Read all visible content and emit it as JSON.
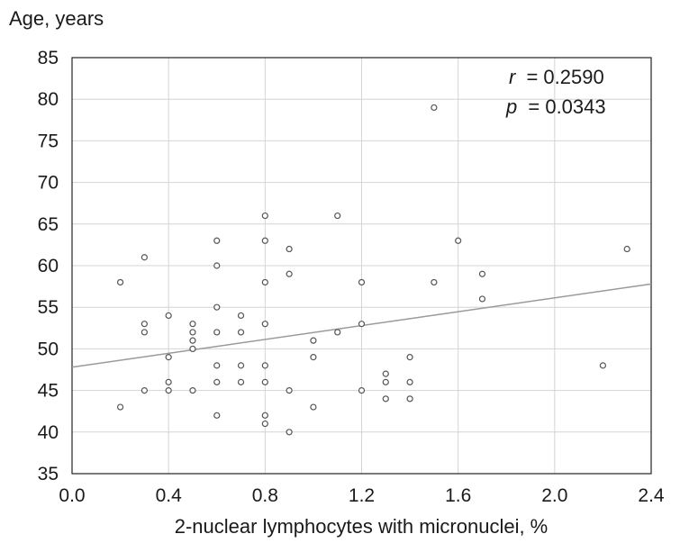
{
  "chart_data": {
    "type": "scatter",
    "title": "",
    "ylabel": "Age, years",
    "xlabel": "2-nuclear lymphocytes with micronuclei, %",
    "xlim": [
      0.0,
      2.4
    ],
    "ylim": [
      35,
      85
    ],
    "x_ticks": [
      "0.0",
      "0.4",
      "0.8",
      "1.2",
      "1.6",
      "2.0",
      "2.4"
    ],
    "y_ticks": [
      "35",
      "40",
      "45",
      "50",
      "55",
      "60",
      "65",
      "70",
      "75",
      "80",
      "85"
    ],
    "grid": true,
    "annotations": {
      "r_symbol": "r",
      "r_value": "= 0.2590",
      "p_symbol": "p",
      "p_value": "= 0.0343"
    },
    "regression_line": {
      "x": [
        0.0,
        2.4
      ],
      "y": [
        47.8,
        57.8
      ]
    },
    "points": [
      [
        0.2,
        58
      ],
      [
        0.2,
        43
      ],
      [
        0.3,
        61
      ],
      [
        0.3,
        53
      ],
      [
        0.3,
        52
      ],
      [
        0.3,
        45
      ],
      [
        0.4,
        54
      ],
      [
        0.4,
        49
      ],
      [
        0.4,
        46
      ],
      [
        0.4,
        45
      ],
      [
        0.5,
        53
      ],
      [
        0.5,
        52
      ],
      [
        0.5,
        51
      ],
      [
        0.5,
        50
      ],
      [
        0.5,
        45
      ],
      [
        0.6,
        63
      ],
      [
        0.6,
        60
      ],
      [
        0.6,
        55
      ],
      [
        0.6,
        52
      ],
      [
        0.6,
        48
      ],
      [
        0.6,
        46
      ],
      [
        0.6,
        42
      ],
      [
        0.7,
        54
      ],
      [
        0.7,
        52
      ],
      [
        0.7,
        48
      ],
      [
        0.7,
        46
      ],
      [
        0.8,
        66
      ],
      [
        0.8,
        63
      ],
      [
        0.8,
        58
      ],
      [
        0.8,
        53
      ],
      [
        0.8,
        48
      ],
      [
        0.8,
        46
      ],
      [
        0.8,
        42
      ],
      [
        0.8,
        41
      ],
      [
        0.9,
        62
      ],
      [
        0.9,
        59
      ],
      [
        0.9,
        45
      ],
      [
        0.9,
        40
      ],
      [
        1.0,
        51
      ],
      [
        1.0,
        49
      ],
      [
        1.0,
        43
      ],
      [
        1.1,
        66
      ],
      [
        1.1,
        52
      ],
      [
        1.2,
        58
      ],
      [
        1.2,
        53
      ],
      [
        1.2,
        45
      ],
      [
        1.3,
        47
      ],
      [
        1.3,
        46
      ],
      [
        1.3,
        44
      ],
      [
        1.4,
        49
      ],
      [
        1.4,
        46
      ],
      [
        1.4,
        44
      ],
      [
        1.5,
        79
      ],
      [
        1.5,
        58
      ],
      [
        1.6,
        63
      ],
      [
        1.7,
        59
      ],
      [
        1.7,
        56
      ],
      [
        2.2,
        48
      ],
      [
        2.3,
        62
      ]
    ]
  }
}
